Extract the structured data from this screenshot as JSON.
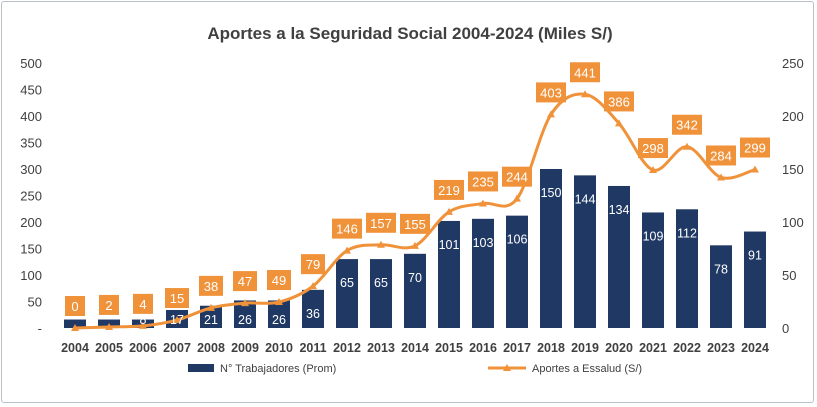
{
  "chart_data": {
    "type": "bar+line",
    "title": "Aportes a la Seguridad Social 2004-2024  (Miles S/)",
    "categories": [
      "2004",
      "2005",
      "2006",
      "2007",
      "2008",
      "2009",
      "2010",
      "2011",
      "2012",
      "2013",
      "2014",
      "2015",
      "2016",
      "2017",
      "2018",
      "2019",
      "2020",
      "2021",
      "2022",
      "2023",
      "2024"
    ],
    "series": [
      {
        "name": "N° Trabajadores (Prom)",
        "type": "bar",
        "axis": "right",
        "color": "#1f3864",
        "values": [
          8,
          8,
          8,
          17,
          21,
          26,
          26,
          36,
          65,
          65,
          70,
          101,
          103,
          106,
          150,
          144,
          134,
          109,
          112,
          78,
          91
        ],
        "labels": [
          "",
          "",
          "8",
          "17",
          "21",
          "26",
          "26",
          "36",
          "65",
          "65",
          "70",
          "101",
          "103",
          "106",
          "150",
          "144",
          "134",
          "109",
          "112",
          "78",
          "91"
        ]
      },
      {
        "name": "Aportes a Essalud (S/)",
        "type": "line",
        "axis": "left",
        "color": "#f0923a",
        "values": [
          0,
          2,
          4,
          15,
          38,
          47,
          49,
          79,
          146,
          157,
          155,
          219,
          235,
          244,
          403,
          441,
          386,
          298,
          342,
          284,
          299
        ]
      }
    ],
    "y_left": {
      "ticks": [
        "-",
        "50",
        "100",
        "150",
        "200",
        "250",
        "300",
        "350",
        "400",
        "450",
        "500"
      ],
      "range": [
        0,
        500
      ]
    },
    "y_right": {
      "ticks": [
        "0",
        "50",
        "100",
        "150",
        "200",
        "250"
      ],
      "range": [
        0,
        250
      ]
    },
    "grid": false,
    "legend": "bottom",
    "colors": {
      "bar": "#1f3864",
      "line": "#f0923a",
      "axis_text": "#404040",
      "title": "#404040"
    }
  }
}
